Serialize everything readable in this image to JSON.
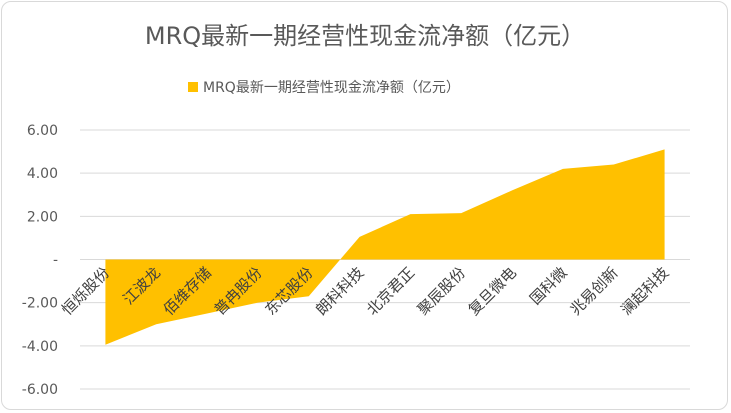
{
  "chart_data": {
    "type": "area",
    "title": "MRQ最新一期经营性现金流净额（亿元）",
    "legend": {
      "position": "top",
      "entries": [
        "MRQ最新一期经营性现金流净额（亿元）"
      ]
    },
    "categories": [
      "恒烁股份",
      "江波龙",
      "佰维存储",
      "普冉股份",
      "东芯股份",
      "朗科科技",
      "北京君正",
      "聚辰股份",
      "复旦微电",
      "国科微",
      "兆易创新",
      "澜起科技"
    ],
    "series": [
      {
        "name": "MRQ最新一期经营性现金流净额（亿元）",
        "values": [
          -3.95,
          -3.0,
          -2.5,
          -2.0,
          -1.7,
          1.05,
          2.1,
          2.15,
          3.2,
          4.2,
          4.4,
          5.1
        ],
        "color": "#FFC000"
      }
    ],
    "ylim": [
      -6,
      6
    ],
    "yticks": [
      -6,
      -4,
      -2,
      0,
      2,
      4,
      6
    ],
    "ytick_labels": [
      "-6.00",
      "-4.00",
      "-2.00",
      "-",
      "2.00",
      "4.00",
      "6.00"
    ],
    "xlabel": "",
    "ylabel": "",
    "grid": true,
    "colors": {
      "grid": "#d9d9d9",
      "text": "#595959"
    }
  }
}
